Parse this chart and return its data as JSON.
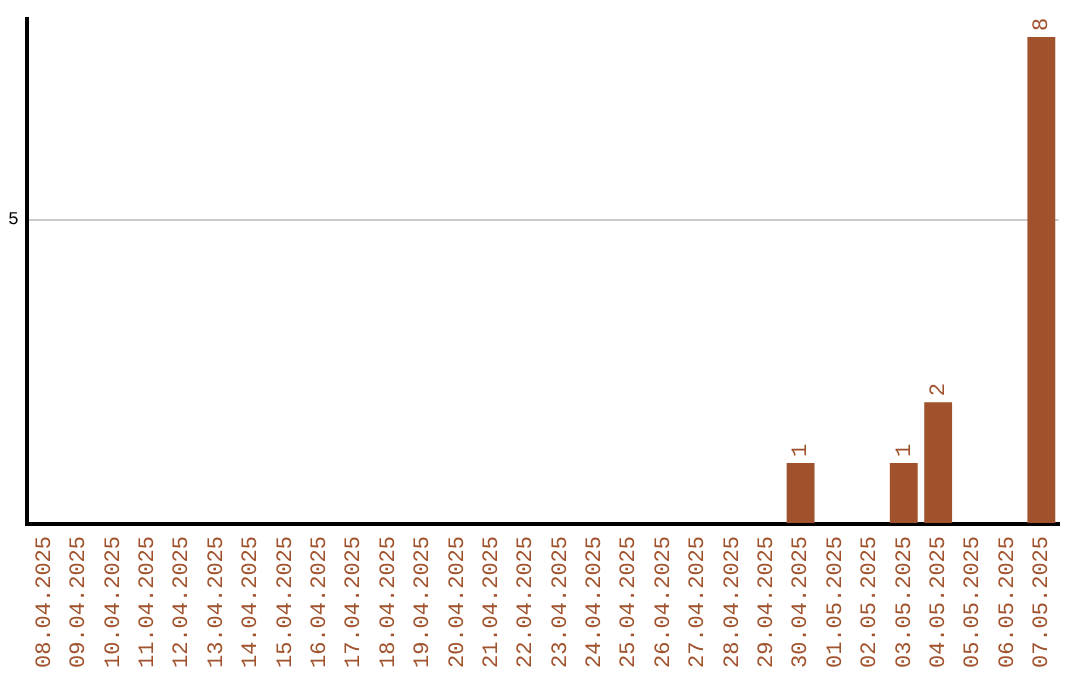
{
  "chart_data": {
    "type": "bar",
    "categories": [
      "08.04.2025",
      "09.04.2025",
      "10.04.2025",
      "11.04.2025",
      "12.04.2025",
      "13.04.2025",
      "14.04.2025",
      "15.04.2025",
      "16.04.2025",
      "17.04.2025",
      "18.04.2025",
      "19.04.2025",
      "20.04.2025",
      "21.04.2025",
      "22.04.2025",
      "23.04.2025",
      "24.04.2025",
      "25.04.2025",
      "26.04.2025",
      "27.04.2025",
      "28.04.2025",
      "29.04.2025",
      "30.04.2025",
      "01.05.2025",
      "02.05.2025",
      "03.05.2025",
      "04.05.2025",
      "05.05.2025",
      "06.05.2025",
      "07.05.2025"
    ],
    "values": [
      null,
      null,
      null,
      null,
      null,
      null,
      null,
      null,
      null,
      null,
      null,
      null,
      null,
      null,
      null,
      null,
      null,
      null,
      null,
      null,
      null,
      null,
      1,
      null,
      null,
      1,
      2,
      null,
      null,
      8
    ],
    "data_labels": true,
    "color": "#a0522d",
    "ylim": [
      0,
      8.3
    ],
    "yticks": [
      {
        "value": 0,
        "label": null
      },
      5
    ],
    "grid": "y",
    "legend": false
  }
}
